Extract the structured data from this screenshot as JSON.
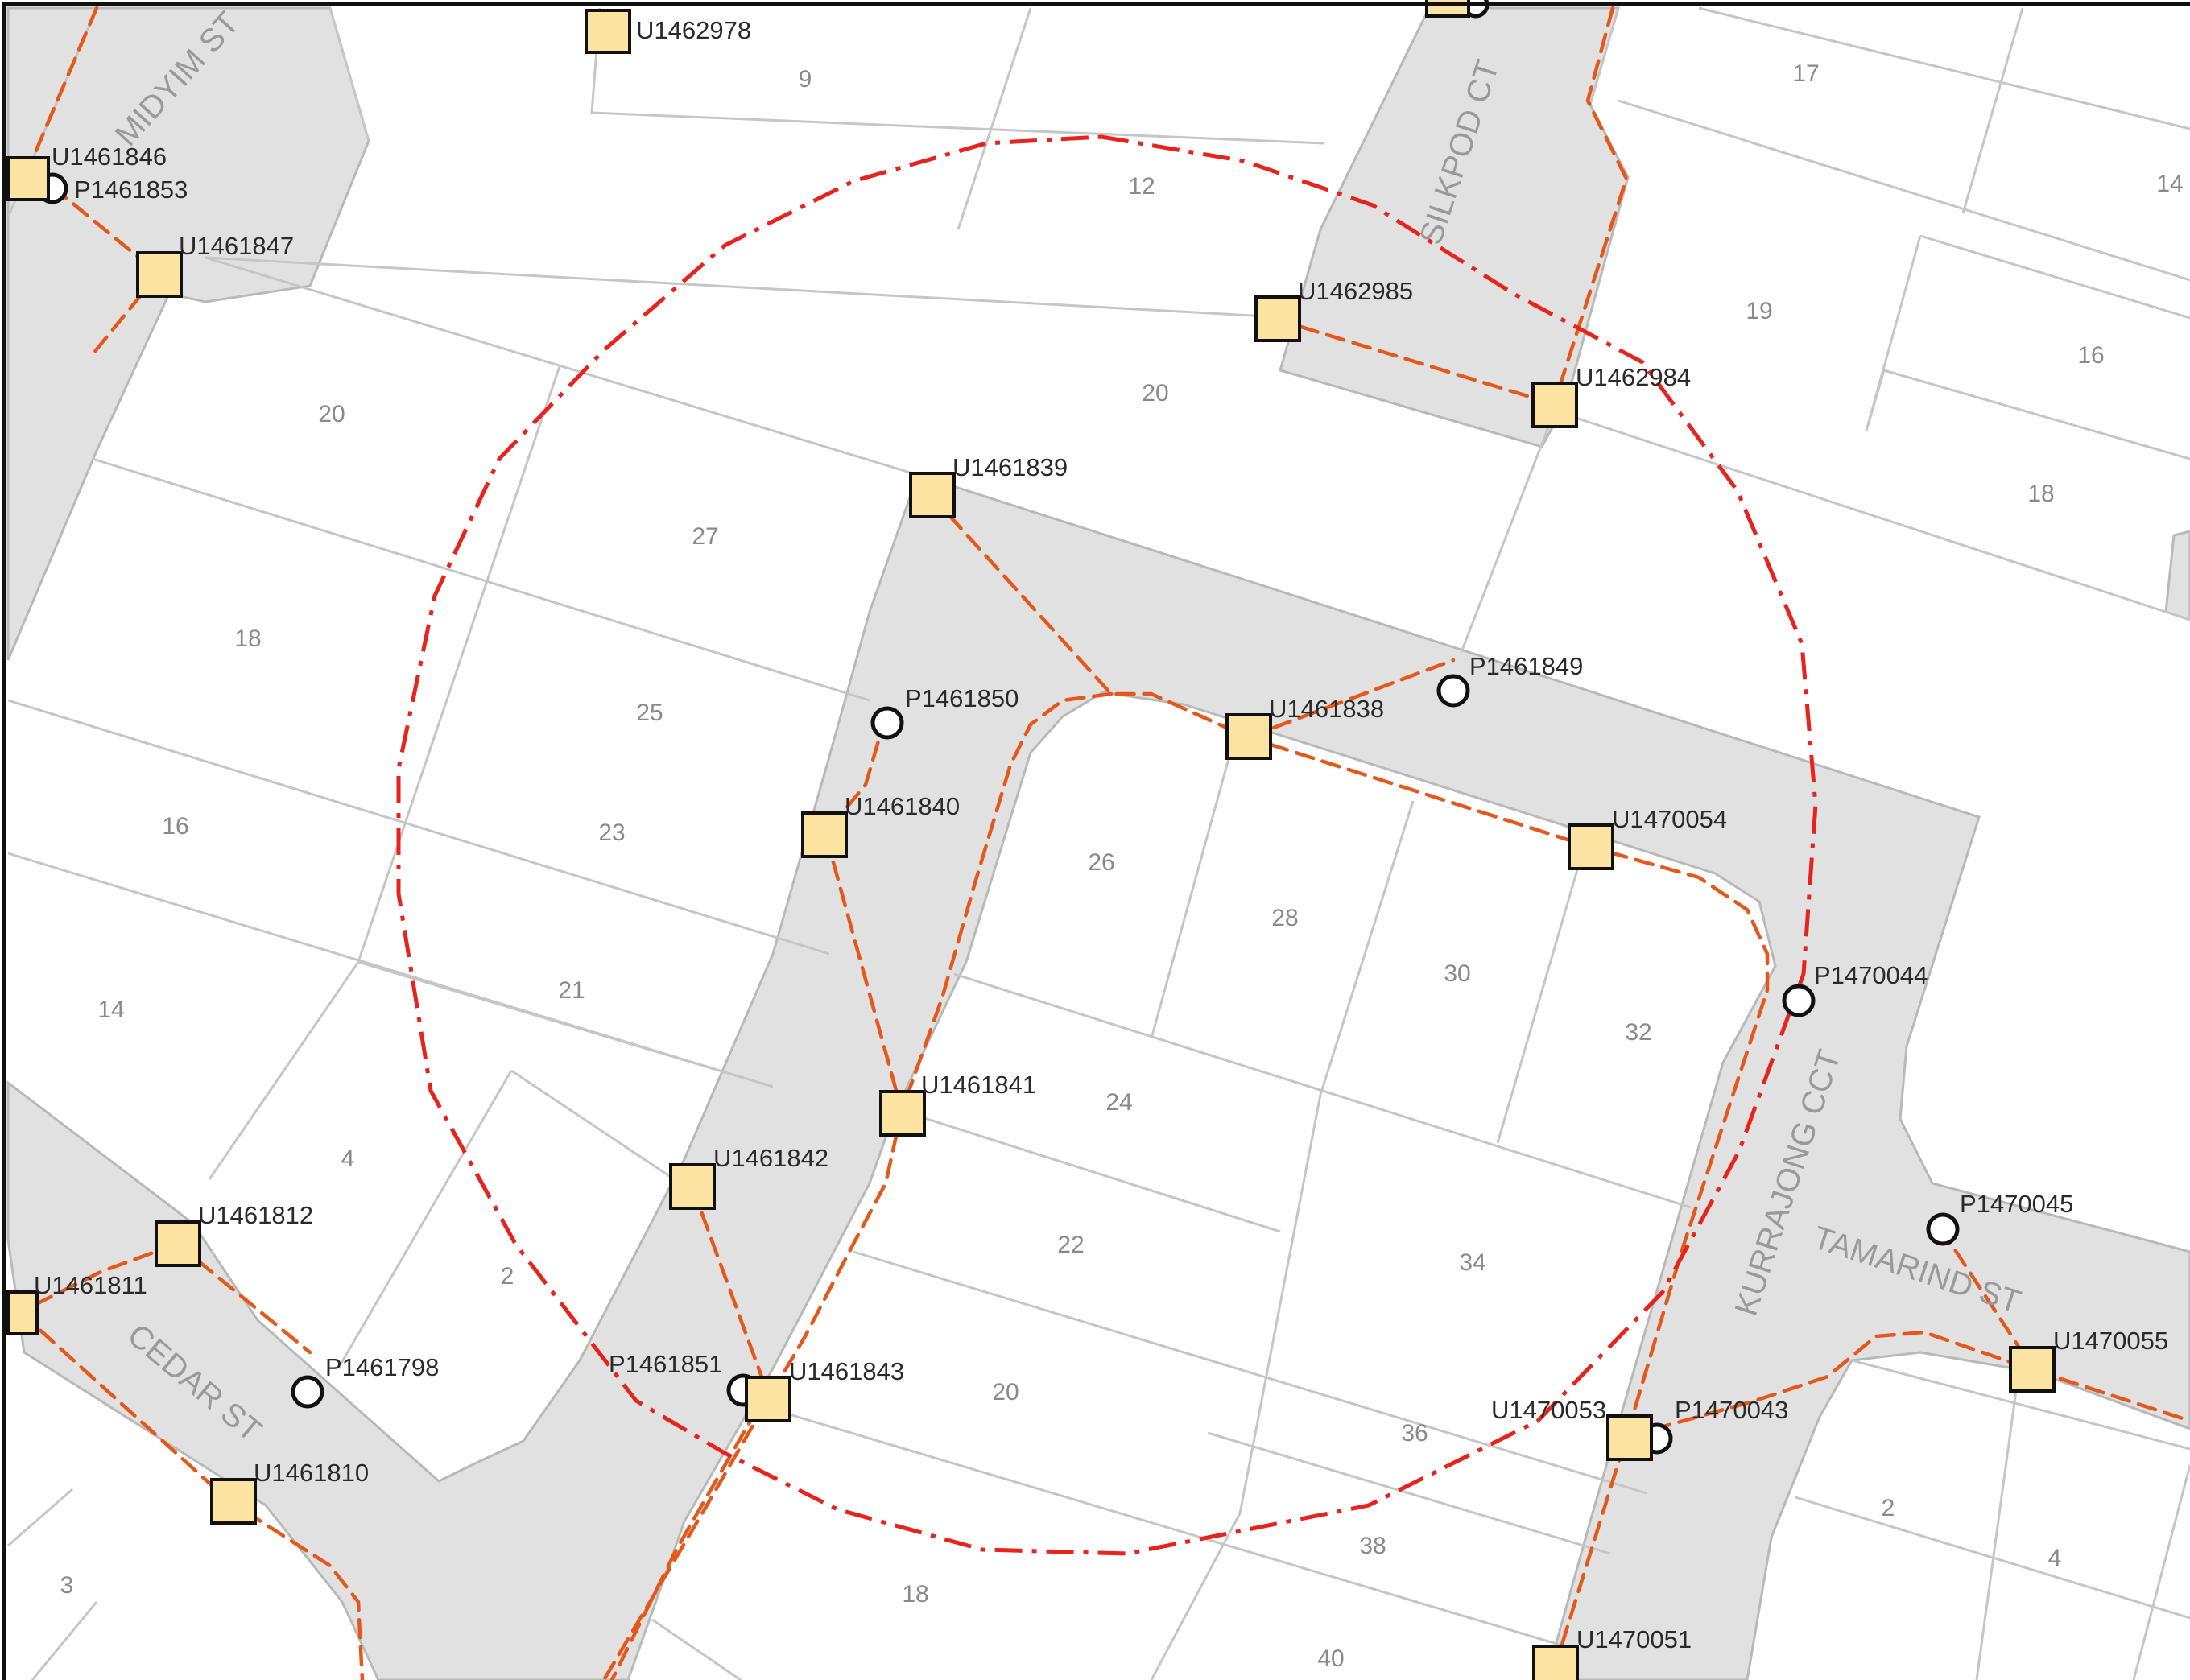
{
  "map": {
    "streets": [
      "MIDYIM ST",
      "SILKPOD CT",
      "KURRAJONG CCT",
      "TAMARIND ST",
      "CEDAR ST"
    ],
    "lots": [
      "9",
      "17",
      "12",
      "14",
      "19",
      "16",
      "20",
      "20",
      "18",
      "27",
      "18",
      "25",
      "16",
      "23",
      "26",
      "28",
      "30",
      "32",
      "14",
      "21",
      "24",
      "4",
      "34",
      "22",
      "2",
      "20",
      "36",
      "38",
      "2",
      "4",
      "3",
      "18",
      "40"
    ],
    "units": [
      "U1462978",
      "U1461846",
      "U1461847",
      "U1462985",
      "U1462984",
      "U1461839",
      "U1461838",
      "U1461840",
      "U1470054",
      "U1461841",
      "U1461842",
      "U1461812",
      "U1461811",
      "U1461843",
      "U1461810",
      "U1470053",
      "U1470055",
      "U1470051"
    ],
    "points": [
      "P1461853",
      "P1461849",
      "P1461850",
      "P1470044",
      "P1470045",
      "P1461798",
      "P1461851",
      "P1470043"
    ]
  }
}
